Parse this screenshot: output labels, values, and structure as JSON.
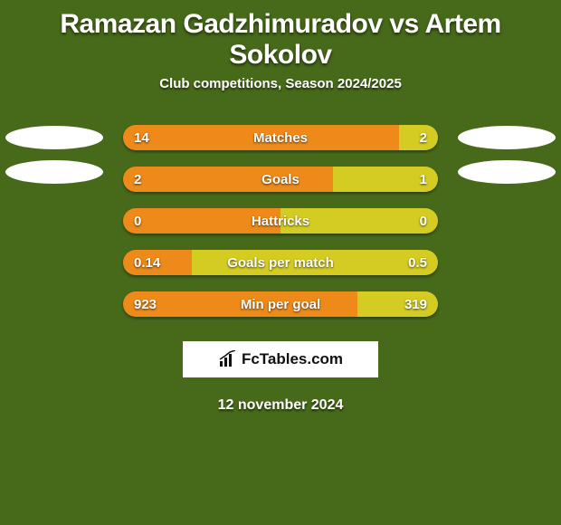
{
  "background_color": "#476a1a",
  "title": "Ramazan Gadzhimuradov vs Artem Sokolov",
  "title_fontsize": 30,
  "subtitle": "Club competitions, Season 2024/2025",
  "subtitle_fontsize": 15,
  "bar_left_color": "#ed8a1a",
  "bar_right_color": "#d4cc22",
  "text_color": "#ffffff",
  "rows": [
    {
      "label": "Matches",
      "left": "14",
      "right": "2",
      "left_pct": 87.5,
      "show_photos": true
    },
    {
      "label": "Goals",
      "left": "2",
      "right": "1",
      "left_pct": 66.7,
      "show_photos": true
    },
    {
      "label": "Hattricks",
      "left": "0",
      "right": "0",
      "left_pct": 50.0,
      "show_photos": false
    },
    {
      "label": "Goals per match",
      "left": "0.14",
      "right": "0.5",
      "left_pct": 21.9,
      "show_photos": false
    },
    {
      "label": "Min per goal",
      "left": "923",
      "right": "319",
      "left_pct": 74.3,
      "show_photos": false
    }
  ],
  "brand": "FcTables.com",
  "date": "12 november 2024"
}
